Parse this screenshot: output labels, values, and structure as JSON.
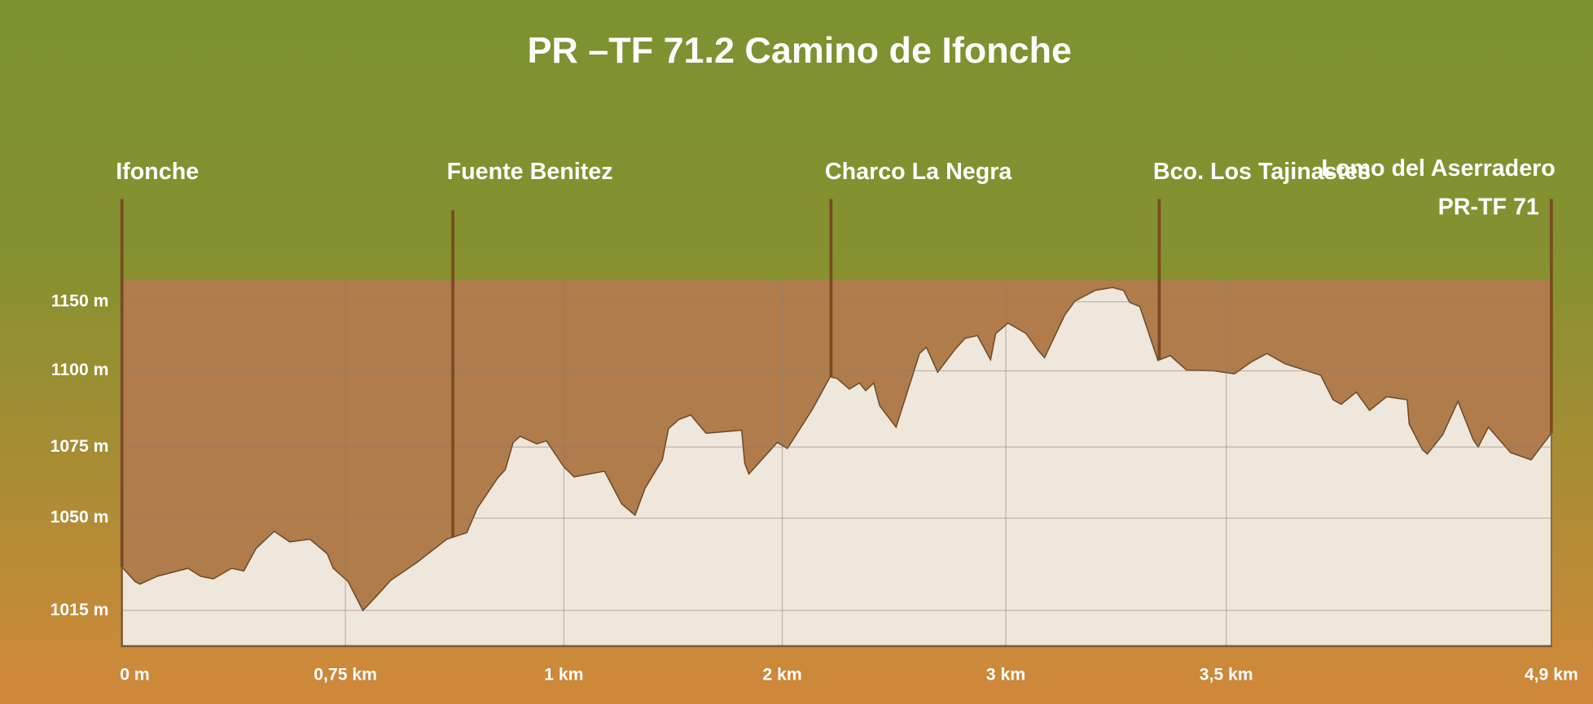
{
  "chart_data": {
    "type": "elevation-profile",
    "title": "PR –TF 71.2 Camino de Ifonche",
    "xlim": [
      0,
      4.9
    ],
    "ylim": [
      1000,
      1165
    ],
    "xticks": [
      {
        "value": 0,
        "label": "0 m"
      },
      {
        "value": 0.75,
        "label": "0,75 km"
      },
      {
        "value": 1,
        "label": "1 km"
      },
      {
        "value": 2,
        "label": "2 km"
      },
      {
        "value": 3,
        "label": "3 km"
      },
      {
        "value": 3.5,
        "label": "3,5 km"
      },
      {
        "value": 4.9,
        "label": "4,9 km"
      }
    ],
    "yticks": [
      {
        "value": 1015,
        "label": "1015 m"
      },
      {
        "value": 1050,
        "label": "1050 m"
      },
      {
        "value": 1075,
        "label": "1075 m"
      },
      {
        "value": 1100,
        "label": "1100 m"
      },
      {
        "value": 1150,
        "label": "1150 m"
      }
    ],
    "grid": true,
    "color": "#efe6dc",
    "background_color": "#b07c4c",
    "x": [
      0,
      0.044,
      0.061,
      0.119,
      0.222,
      0.263,
      0.307,
      0.368,
      0.409,
      0.45,
      0.511,
      0.563,
      0.631,
      0.689,
      0.709,
      0.753,
      0.77,
      0.787,
      0.802,
      0.831,
      0.866,
      0.889,
      0.901,
      0.924,
      0.933,
      0.942,
      0.95,
      0.969,
      0.98,
      1.0,
      1.047,
      1.186,
      1.265,
      1.326,
      1.372,
      1.451,
      1.479,
      1.526,
      1.581,
      1.651,
      1.814,
      1.828,
      1.847,
      1.977,
      2.023,
      2.136,
      2.214,
      2.245,
      2.3,
      2.345,
      2.373,
      2.409,
      2.436,
      2.509,
      2.568,
      2.614,
      2.645,
      2.695,
      2.773,
      2.818,
      2.873,
      2.932,
      2.955,
      3.005,
      3.046,
      3.074,
      3.088,
      3.134,
      3.157,
      3.203,
      3.242,
      3.267,
      3.281,
      3.304,
      3.345,
      3.373,
      3.41,
      3.472,
      3.535,
      3.609,
      3.675,
      3.754,
      3.907,
      3.96,
      3.995,
      4.06,
      4.117,
      4.191,
      4.279,
      4.288,
      4.345,
      4.366,
      4.432,
      4.498,
      4.563,
      4.585,
      4.629,
      4.725,
      4.813,
      4.9
    ],
    "values": [
      1031.5,
      1026,
      1025,
      1028,
      1031,
      1028,
      1027,
      1031,
      1030,
      1038.5,
      1045,
      1041,
      1042,
      1036.5,
      1031,
      1026,
      1015,
      1021,
      1026.5,
      1033,
      1042,
      1044.5,
      1053.5,
      1064,
      1067,
      1076.5,
      1078.5,
      1076,
      1077,
      1068,
      1064.5,
      1066.5,
      1055,
      1051,
      1060.5,
      1070.5,
      1081,
      1084,
      1085.5,
      1079.5,
      1080.5,
      1069.3,
      1065.5,
      1076.5,
      1074.5,
      1087.5,
      1098,
      1097.5,
      1094,
      1096,
      1093.5,
      1096,
      1088.5,
      1081.5,
      1095,
      1112.5,
      1117,
      1099.5,
      1115.5,
      1123.5,
      1125.5,
      1108,
      1127,
      1134.5,
      1127,
      1114.5,
      1109.5,
      1140.5,
      1150.5,
      1158,
      1160,
      1158,
      1149.5,
      1146.5,
      1107.5,
      1111,
      1100.5,
      1100,
      1099,
      1106.5,
      1112.5,
      1105,
      1098.5,
      1090.5,
      1089,
      1093,
      1087,
      1091.5,
      1090.5,
      1082.5,
      1074,
      1072.5,
      1079,
      1090,
      1077.5,
      1075,
      1081.5,
      1073,
      1070.5,
      1079.5
    ],
    "waypoints": [
      {
        "name": "Ifonche",
        "km": 0
      },
      {
        "name": "Fuente Benitez",
        "km": 0.873
      },
      {
        "name": "Charco La Negra",
        "km": 2.218
      },
      {
        "name": "Bco. Los Tajinastes",
        "km": 3.348
      },
      {
        "name": "Lomo del Aserradero",
        "subname": "PR-TF 71",
        "km": 4.9
      }
    ],
    "marker_color": "#7a4a22"
  }
}
